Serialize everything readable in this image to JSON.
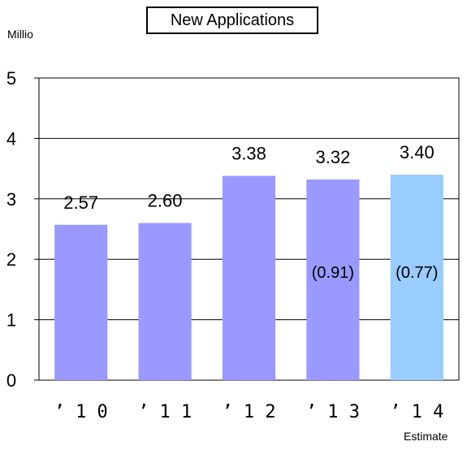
{
  "chart_data": {
    "type": "bar",
    "title": "New Applications",
    "ylabel": "Millio",
    "categories": [
      "’ 1 0",
      "’ 1 1",
      "’ 1 2",
      "’ 1 3",
      "’ 1 4"
    ],
    "values": [
      2.57,
      2.6,
      3.38,
      3.32,
      3.4
    ],
    "value_labels": [
      "2.57",
      "2.60",
      "3.38",
      "3.32",
      "3.40"
    ],
    "inner_labels": [
      "",
      "",
      "",
      "(0.91)",
      "(0.77)"
    ],
    "inner_label_value": 1.8,
    "ylim": [
      0,
      5
    ],
    "yticks": [
      0,
      1,
      2,
      3,
      4,
      5
    ],
    "grid": true,
    "legend": "none",
    "note": "Estimate",
    "colors": {
      "bar": "#9999ff",
      "estimate_bar": "#99ccff",
      "grid": "#000000",
      "axis": "#000000"
    },
    "estimate_index": 4
  }
}
